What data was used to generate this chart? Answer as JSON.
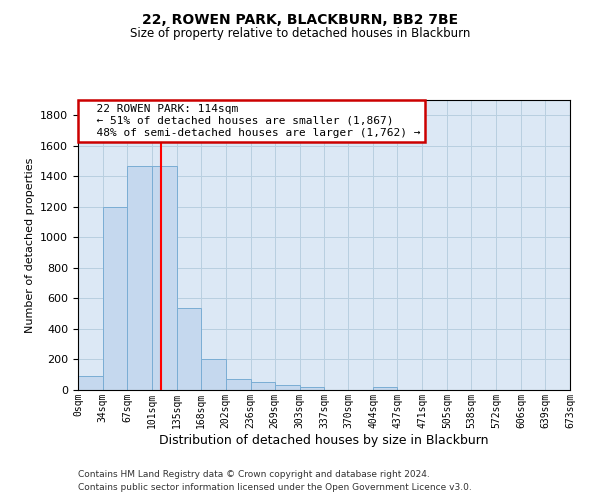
{
  "title1": "22, ROWEN PARK, BLACKBURN, BB2 7BE",
  "title2": "Size of property relative to detached houses in Blackburn",
  "xlabel": "Distribution of detached houses by size in Blackburn",
  "ylabel": "Number of detached properties",
  "annotation_line1": "22 ROWEN PARK: 114sqm",
  "annotation_line2": "← 51% of detached houses are smaller (1,867)",
  "annotation_line3": "48% of semi-detached houses are larger (1,762) →",
  "footer1": "Contains HM Land Registry data © Crown copyright and database right 2024.",
  "footer2": "Contains public sector information licensed under the Open Government Licence v3.0.",
  "bin_edges": [
    0,
    34,
    67,
    101,
    135,
    168,
    202,
    236,
    269,
    303,
    337,
    370,
    404,
    437,
    471,
    505,
    538,
    572,
    606,
    639,
    673
  ],
  "bar_heights": [
    90,
    1200,
    1470,
    1470,
    540,
    200,
    70,
    50,
    35,
    20,
    0,
    0,
    20,
    0,
    0,
    0,
    0,
    0,
    0,
    0
  ],
  "bar_color": "#c5d8ee",
  "bar_edge_color": "#7aadd4",
  "redline_x": 114,
  "annotation_box_color": "#ffffff",
  "annotation_box_edge": "#cc0000",
  "ylim": [
    0,
    1900
  ],
  "yticks": [
    0,
    200,
    400,
    600,
    800,
    1000,
    1200,
    1400,
    1600,
    1800
  ],
  "background_color": "#ffffff",
  "axes_bg_color": "#dce8f5",
  "grid_color": "#b8cfe0"
}
